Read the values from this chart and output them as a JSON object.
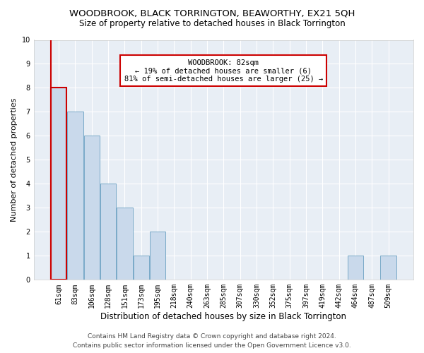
{
  "title": "WOODBROOK, BLACK TORRINGTON, BEAWORTHY, EX21 5QH",
  "subtitle": "Size of property relative to detached houses in Black Torrington",
  "xlabel": "Distribution of detached houses by size in Black Torrington",
  "ylabel": "Number of detached properties",
  "categories": [
    "61sqm",
    "83sqm",
    "106sqm",
    "128sqm",
    "151sqm",
    "173sqm",
    "195sqm",
    "218sqm",
    "240sqm",
    "263sqm",
    "285sqm",
    "307sqm",
    "330sqm",
    "352sqm",
    "375sqm",
    "397sqm",
    "419sqm",
    "442sqm",
    "464sqm",
    "487sqm",
    "509sqm"
  ],
  "values": [
    8,
    7,
    6,
    4,
    3,
    1,
    2,
    0,
    0,
    0,
    0,
    0,
    0,
    0,
    0,
    0,
    0,
    0,
    1,
    0,
    1
  ],
  "bar_color": "#c9d9eb",
  "bar_edge_color": "#7aaac8",
  "highlight_edge_color": "#cc0000",
  "annotation_text": "WOODBROOK: 82sqm\n← 19% of detached houses are smaller (6)\n81% of semi-detached houses are larger (25) →",
  "annotation_box_color": "#ffffff",
  "annotation_box_edge_color": "#cc0000",
  "ylim": [
    0,
    10
  ],
  "yticks": [
    0,
    1,
    2,
    3,
    4,
    5,
    6,
    7,
    8,
    9,
    10
  ],
  "footer_line1": "Contains HM Land Registry data © Crown copyright and database right 2024.",
  "footer_line2": "Contains public sector information licensed under the Open Government Licence v3.0.",
  "bg_color": "#ffffff",
  "plot_bg_color": "#e8eef5",
  "title_fontsize": 9.5,
  "subtitle_fontsize": 8.5,
  "xlabel_fontsize": 8.5,
  "ylabel_fontsize": 8,
  "tick_fontsize": 7,
  "annotation_fontsize": 7.5,
  "footer_fontsize": 6.5
}
